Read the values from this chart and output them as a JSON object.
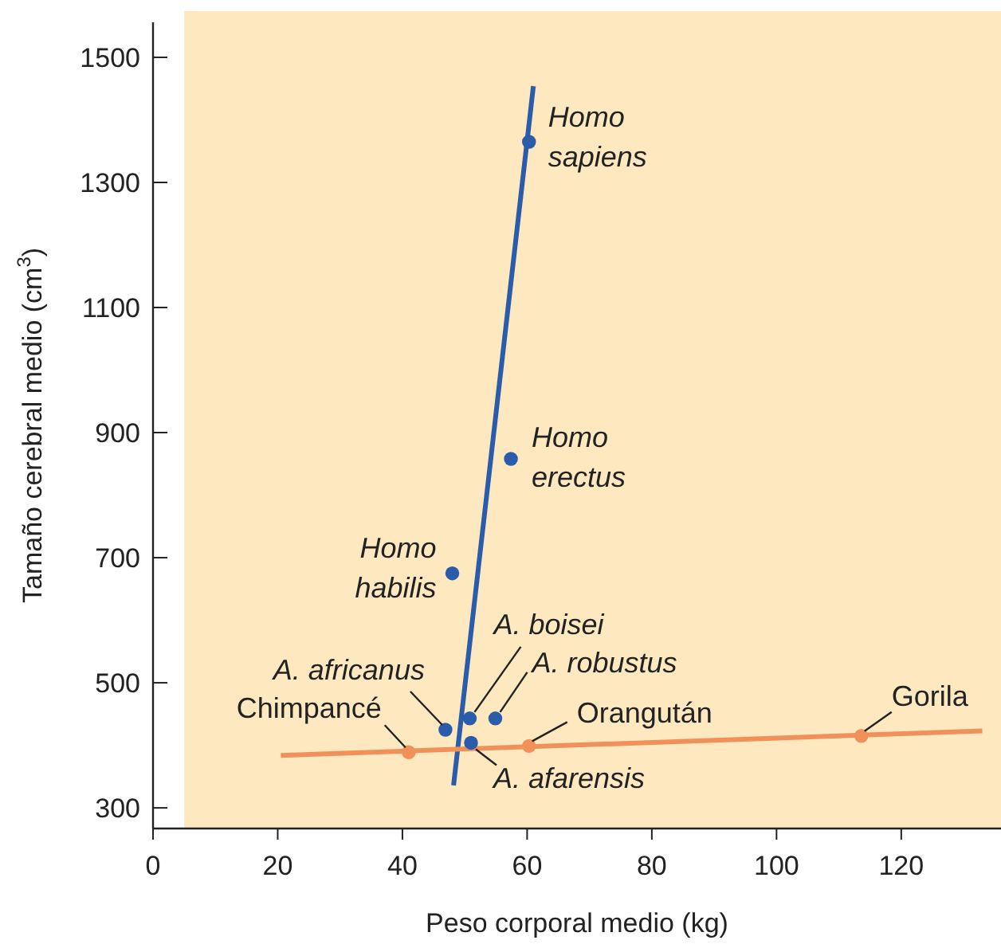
{
  "chart_data": {
    "type": "scatter",
    "xlabel": "Peso corporal medio (kg)",
    "ylabel": "Tamaño cerebral medio (cm$^{3}$)",
    "xlim": [
      0,
      136
    ],
    "ylim": [
      267,
      1556
    ],
    "xticks": [
      0,
      20,
      40,
      60,
      80,
      100,
      120
    ],
    "yticks": [
      300,
      500,
      700,
      900,
      1100,
      1300,
      1500
    ],
    "grid": false,
    "marker": "circle",
    "series": [
      {
        "color": "#2a5caa",
        "x": [
          60.3,
          57.4,
          48,
          50.8,
          54.9,
          46.9,
          51
        ],
        "values": [
          1365,
          858,
          675,
          443,
          443,
          425,
          404
        ]
      },
      {
        "color": "#f0915a",
        "x": [
          41,
          60.3,
          113.6
        ],
        "values": [
          389,
          399,
          415
        ]
      },
      {
        "type": "line",
        "marker": "none",
        "color": "#2a5caa",
        "x": [
          48.2,
          61
        ],
        "values": [
          336,
          1454
        ]
      },
      {
        "type": "line",
        "marker": "none",
        "color": "#f0915a",
        "x": [
          20.5,
          133
        ],
        "values": [
          384,
          423
        ]
      }
    ],
    "annotations": [
      {
        "text": "Homo sapiens",
        "x": 60.3,
        "y": 1365
      },
      {
        "text": "Homo erectus",
        "x": 57.4,
        "y": 858
      },
      {
        "text": "Homo habilis",
        "x": 48,
        "y": 675
      },
      {
        "text": "A. boisei",
        "x": 50.8,
        "y": 443
      },
      {
        "text": "A. robustus",
        "x": 54.9,
        "y": 443
      },
      {
        "text": "A. africanus",
        "x": 46.9,
        "y": 425
      },
      {
        "text": "A. afarensis",
        "x": 51,
        "y": 404
      },
      {
        "text": "Chimpancé",
        "x": 41,
        "y": 389
      },
      {
        "text": "Orangután",
        "x": 60.3,
        "y": 399
      },
      {
        "text": "Gorila",
        "x": 113.6,
        "y": 415
      }
    ]
  }
}
